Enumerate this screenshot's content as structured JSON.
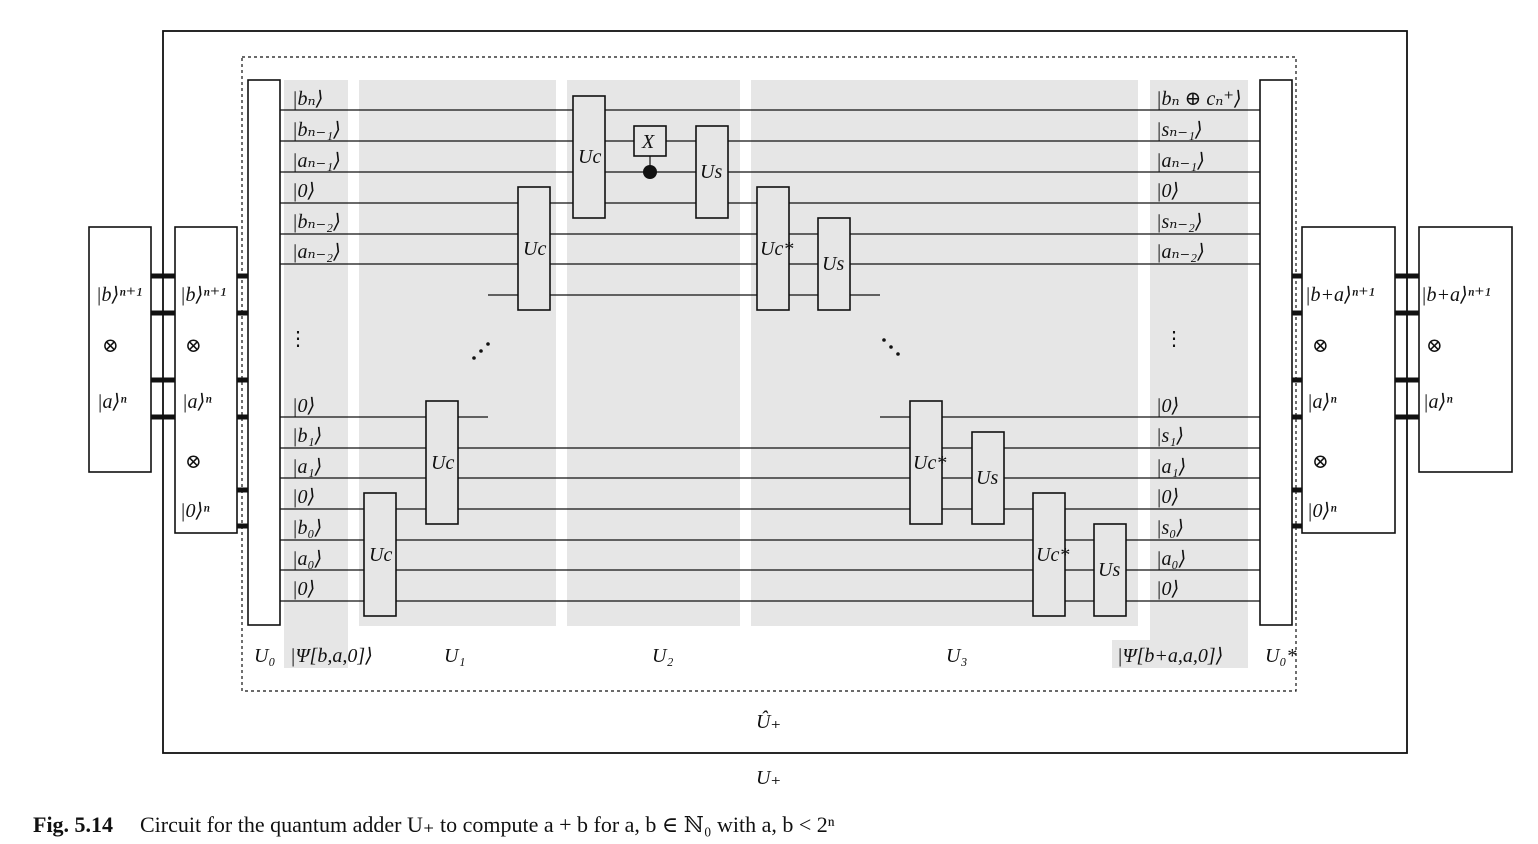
{
  "caption": {
    "label": "Fig. 5.14",
    "text": "Circuit for the quantum adder U₊ to compute a + b for a, b ∈ ℕ₀ with a, b < 2ⁿ"
  },
  "outer_label": "U₊",
  "inner_label": "Û₊",
  "input_state": {
    "top": "|b⟩ⁿ⁺¹",
    "tensor": "⊗",
    "bottom": "|a⟩ⁿ"
  },
  "input_expanded": {
    "top": "|b⟩ⁿ⁺¹",
    "tensor1": "⊗",
    "middle": "|a⟩ⁿ",
    "tensor2": "⊗",
    "bottom": "|0⟩ⁿ"
  },
  "output_expanded": {
    "top": "|b+a⟩ⁿ⁺¹",
    "tensor1": "⊗",
    "middle": "|a⟩ⁿ",
    "tensor2": "⊗",
    "bottom": "|0⟩ⁿ"
  },
  "output_state": {
    "top": "|b+a⟩ⁿ⁺¹",
    "tensor": "⊗",
    "bottom": "|a⟩ⁿ"
  },
  "left_kets": [
    "|bₙ⟩",
    "|bₙ₋₁⟩",
    "|aₙ₋₁⟩",
    "|0⟩",
    "|bₙ₋₂⟩",
    "|aₙ₋₂⟩",
    "|0⟩",
    "|b₁⟩",
    "|a₁⟩",
    "|0⟩",
    "|b₀⟩",
    "|a₀⟩",
    "|0⟩"
  ],
  "right_kets": [
    "|bₙ ⊕ cₙ⁺⟩",
    "|sₙ₋₁⟩",
    "|aₙ₋₁⟩",
    "|0⟩",
    "|sₙ₋₂⟩",
    "|aₙ₋₂⟩",
    "|0⟩",
    "|s₁⟩",
    "|a₁⟩",
    "|0⟩",
    "|s₀⟩",
    "|a₀⟩",
    "|0⟩"
  ],
  "vdots": "⋮",
  "stage_labels": {
    "u0": "U₀",
    "psi_in": "|Ψ[b,a,0]⟩",
    "u1": "U₁",
    "u2": "U₂",
    "u3": "U₃",
    "psi_out": "|Ψ[b+a,a,0]⟩",
    "u0_star": "U₀*"
  },
  "gates": {
    "uc": "Uc",
    "us": "Us",
    "uc_star": "Uc*",
    "x": "X"
  }
}
